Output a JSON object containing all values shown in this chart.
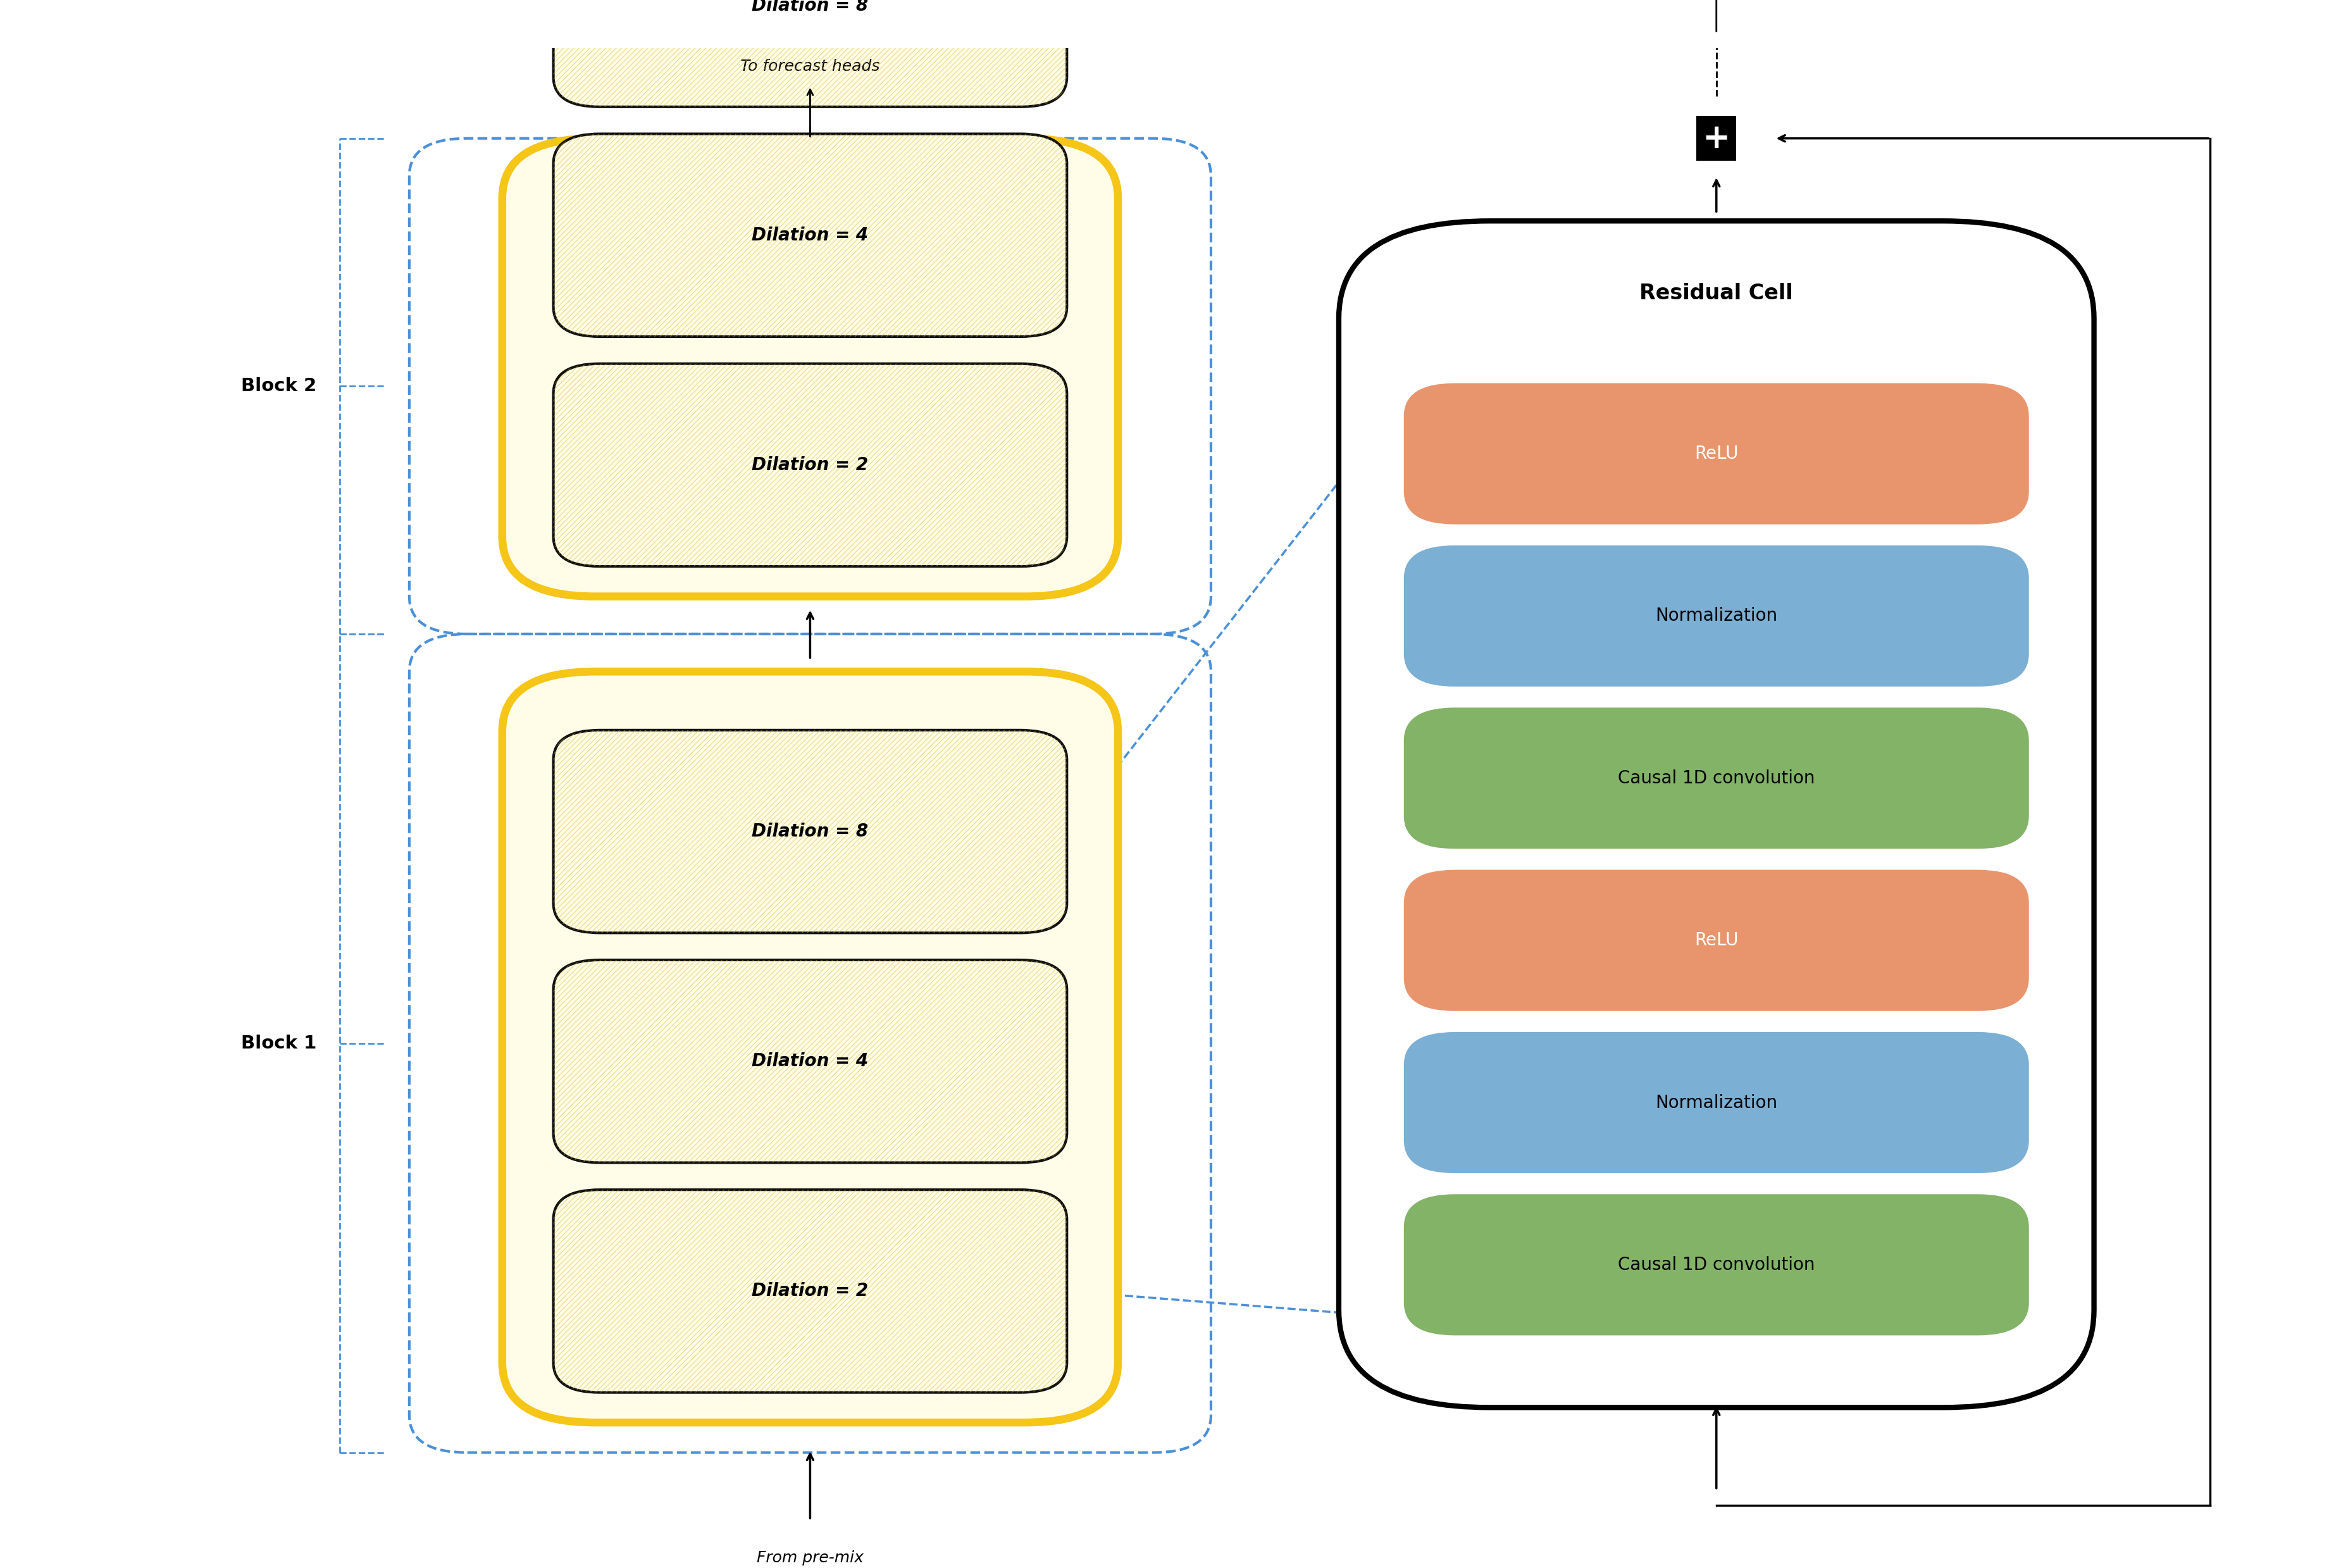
{
  "fig_width": 36.81,
  "fig_height": 24.78,
  "bg_color": "#ffffff",
  "block_bg": "#fffde7",
  "block_border": "#f5c518",
  "dilation_box_bg": "#fffde7",
  "dilation_box_border": "#111111",
  "relu_color": "#e8956d",
  "norm_color": "#7bafd4",
  "conv_color": "#82b366",
  "dashed_color": "#4a90d9",
  "arrow_color": "#111111",
  "block1_label": "Block 1",
  "block2_label": "Block 2",
  "dilation_labels": [
    "Dilation = 2",
    "Dilation = 4",
    "Dilation = 8"
  ],
  "cell_layers": [
    "ReLU",
    "Normalization",
    "Causal 1D convolution",
    "ReLU",
    "Normalization",
    "Causal 1D convolution"
  ],
  "cell_colors": [
    "#e8956d",
    "#7bafd4",
    "#82b366",
    "#e8956d",
    "#7bafd4",
    "#82b366"
  ],
  "cell_title": "Residual Cell",
  "label_from": "From pre-mix",
  "label_to": "To forecast heads"
}
